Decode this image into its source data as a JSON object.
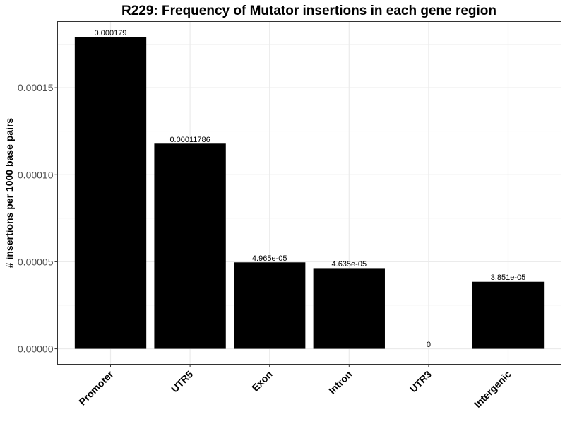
{
  "chart_data": {
    "type": "bar",
    "title": "R229: Frequency of Mutator insertions in each gene region",
    "xlabel": "",
    "ylabel": "# insertions per 1000 base pairs",
    "categories": [
      "Promoter",
      "UTR5",
      "Exon",
      "Intron",
      "UTR3",
      "Intergenic"
    ],
    "values": [
      0.000179,
      0.00011786,
      4.965e-05,
      4.635e-05,
      0,
      3.851e-05
    ],
    "value_labels": [
      "0.000179",
      "0.00011786",
      "4.965e-05",
      "4.635e-05",
      "0",
      "3.851e-05"
    ],
    "y_ticks": [
      0,
      5e-05,
      0.0001,
      0.00015
    ],
    "y_tick_labels": [
      "0.00000",
      "0.00005",
      "0.00010",
      "0.00015"
    ],
    "ylim": [
      -8.9e-06,
      0.000188
    ],
    "grid": true,
    "legend": "none",
    "colors": {
      "bar": "#000000",
      "panel_border": "#333333",
      "grid_major": "#ebebeb",
      "grid_minor": "#f5f5f5",
      "tick_label": "#4d4d4d"
    }
  }
}
